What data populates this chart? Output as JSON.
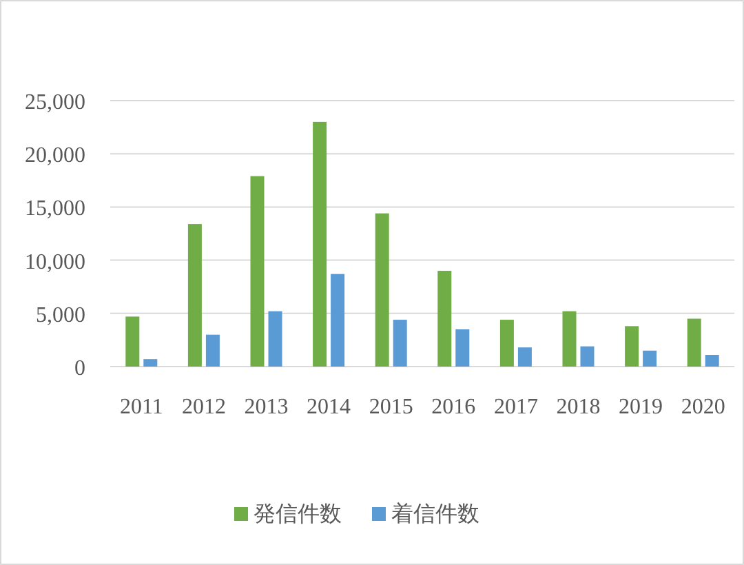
{
  "chart_data": {
    "type": "bar",
    "categories": [
      "2011",
      "2012",
      "2013",
      "2014",
      "2015",
      "2016",
      "2017",
      "2018",
      "2019",
      "2020"
    ],
    "series": [
      {
        "name": "発信件数",
        "color": "#70ad47",
        "values": [
          4700,
          13400,
          17900,
          23000,
          14400,
          9000,
          4400,
          5200,
          3800,
          4500
        ]
      },
      {
        "name": "着信件数",
        "color": "#5b9bd5",
        "values": [
          700,
          3000,
          5200,
          8700,
          4400,
          3500,
          1800,
          1900,
          1500,
          1100
        ]
      }
    ],
    "ylim": [
      0,
      25000
    ],
    "yticks": [
      {
        "value": 0,
        "label": "0"
      },
      {
        "value": 5000,
        "label": "5,000"
      },
      {
        "value": 10000,
        "label": "10,000"
      },
      {
        "value": 15000,
        "label": "15,000"
      },
      {
        "value": 20000,
        "label": "20,000"
      },
      {
        "value": 25000,
        "label": "25,000"
      }
    ],
    "grid": "y",
    "legend": "bottom"
  }
}
